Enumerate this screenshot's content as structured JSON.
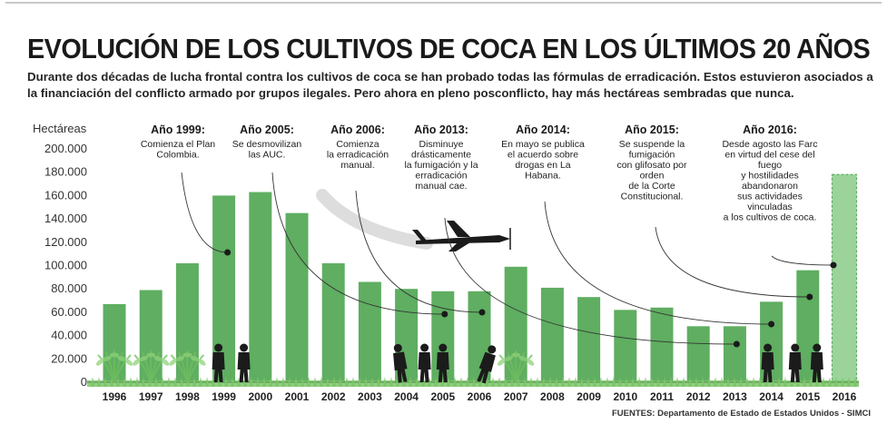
{
  "header": {
    "title": "EVOLUCIÓN DE LOS CULTIVOS DE COCA EN LOS ÚLTIMOS 20 AÑOS",
    "subtitle_lines": [
      "Durante dos décadas de lucha frontal contra los cultivos de coca se han probado todas las fórmulas de erradicación. Estos estuvieron asociados a",
      "la financiación del conflicto armado por grupos ilegales. Pero ahora en pleno posconflicto, hay más hectáreas sembradas que nunca."
    ]
  },
  "footer": {
    "sources": "FUENTES:  Departamento de Estado de Estados Unidos - SIMCI"
  },
  "colors": {
    "bar": "#5fae61",
    "bar_projected": "#9bd39b",
    "grass": "#7dc56a",
    "silhouette": "#1b1b1b"
  },
  "icons": [
    "airplane-icon",
    "soldier-silhouette-icon",
    "farmer-silhouette-icon",
    "coca-plant-icon"
  ],
  "chart_data": {
    "type": "bar",
    "ylabel": "Hectáreas",
    "ylim": [
      0,
      200000
    ],
    "yticks": [
      "0",
      "20.000",
      "40.000",
      "60.000",
      "80.000",
      "100.000",
      "120.000",
      "140.000",
      "160.000",
      "180.000",
      "200.000"
    ],
    "grid": false,
    "categories": [
      "1996",
      "1997",
      "1998",
      "1999",
      "2000",
      "2001",
      "2002",
      "2003",
      "2004",
      "2005",
      "2006",
      "2007",
      "2008",
      "2009",
      "2010",
      "2011",
      "2012",
      "2013",
      "2014",
      "2015",
      "2016"
    ],
    "values": [
      67000,
      79000,
      102000,
      160000,
      163000,
      145000,
      102000,
      86000,
      80000,
      78000,
      78000,
      99000,
      81000,
      73000,
      62000,
      64000,
      48000,
      48000,
      69000,
      96000,
      178000
    ],
    "projected": [
      false,
      false,
      false,
      false,
      false,
      false,
      false,
      false,
      false,
      false,
      false,
      false,
      false,
      false,
      false,
      false,
      false,
      false,
      false,
      false,
      true
    ],
    "annotations": [
      {
        "title": "Año 1999:",
        "lines": [
          "Comienza el Plan",
          "Colombia."
        ],
        "year": "1999"
      },
      {
        "title": "Año 2005:",
        "lines": [
          "Se desmovilizan",
          "las AUC."
        ],
        "year": "2005"
      },
      {
        "title": "Año 2006:",
        "lines": [
          "Comienza",
          "la erradicación",
          "manual."
        ],
        "year": "2006"
      },
      {
        "title": "Año 2013:",
        "lines": [
          "Disminuye",
          "drásticamente",
          "la fumigación y la",
          "erradicación",
          "manual cae."
        ],
        "year": "2013"
      },
      {
        "title": "Año 2014:",
        "lines": [
          "En mayo se publica",
          "el acuerdo sobre",
          "drogas en La",
          "Habana."
        ],
        "year": "2014"
      },
      {
        "title": "Año 2015:",
        "lines": [
          "Se suspende la",
          "fumigación",
          "con glifosato por",
          "orden",
          "de la Corte",
          "Constitucional."
        ],
        "year": "2015"
      },
      {
        "title": "Año 2016:",
        "lines": [
          "Desde agosto las Farc",
          "en virtud del cese del",
          "fuego",
          "y hostilidades",
          "abandonaron",
          "sus actividades",
          "vinculadas",
          "a los cultivos de coca."
        ],
        "year": "2016"
      }
    ]
  }
}
